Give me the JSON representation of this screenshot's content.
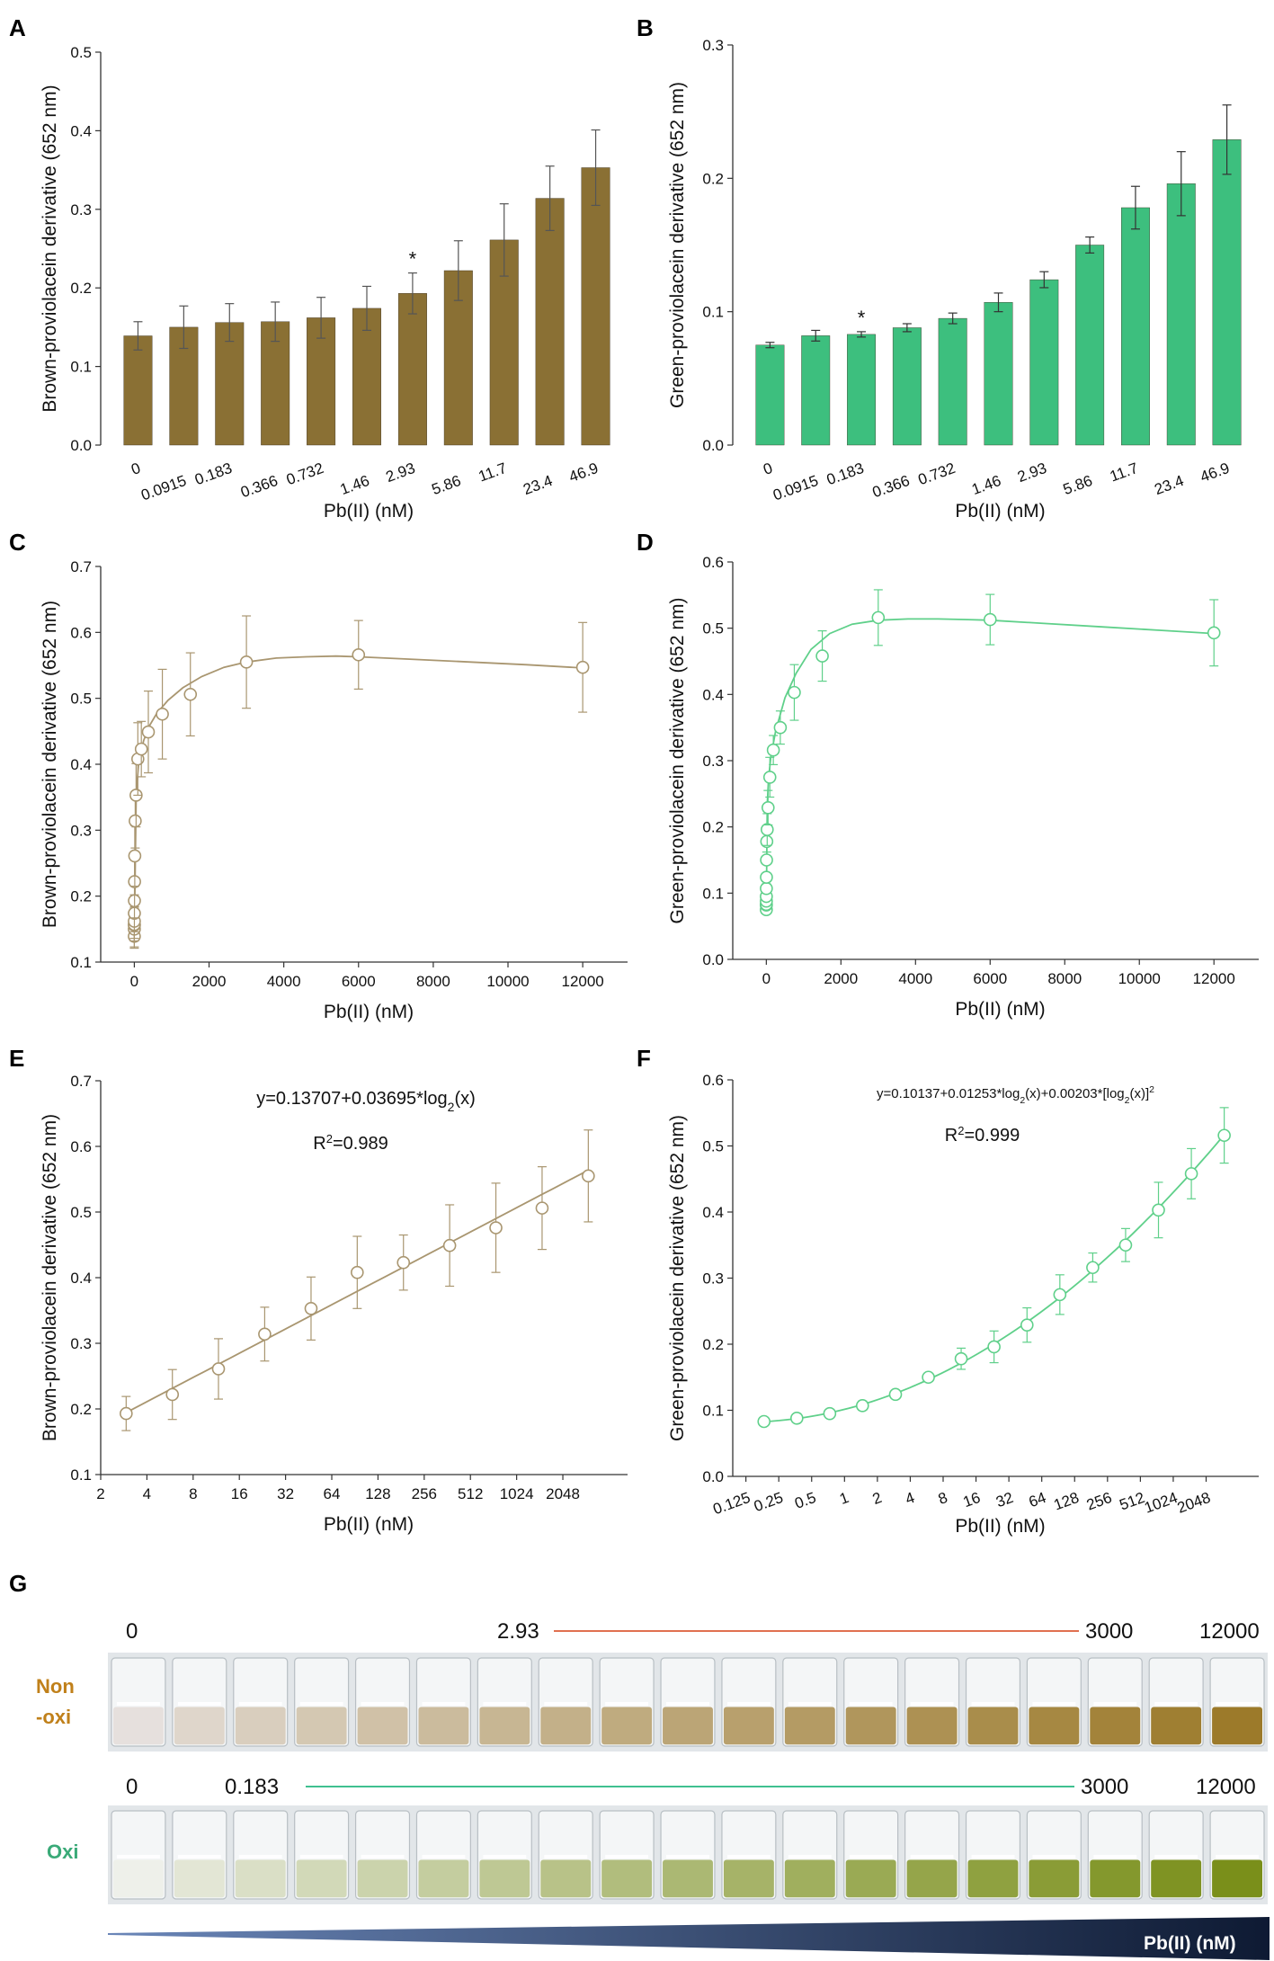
{
  "chart_data": [
    {
      "id": "A",
      "type": "bar",
      "panel_label": "A",
      "categories": [
        "0",
        "0.0915",
        "0.183",
        "0.366",
        "0.732",
        "1.46",
        "2.93",
        "5.86",
        "11.7",
        "23.4",
        "46.9"
      ],
      "values": [
        0.139,
        0.15,
        0.156,
        0.157,
        0.162,
        0.174,
        0.193,
        0.222,
        0.261,
        0.314,
        0.353
      ],
      "errors": [
        0.018,
        0.027,
        0.024,
        0.025,
        0.026,
        0.028,
        0.026,
        0.038,
        0.046,
        0.041,
        0.048
      ],
      "significance_index": 6,
      "significance_mark": "*",
      "xlabel": "Pb(II) (nM)",
      "ylabel": "Brown-proviolacein derivative (652 nm)",
      "ylim": [
        0,
        0.5
      ],
      "yticks": [
        "0.0",
        "0.1",
        "0.2",
        "0.3",
        "0.4",
        "0.5"
      ],
      "color": "#8a7034",
      "ylabel_color": "#8a7a56"
    },
    {
      "id": "B",
      "type": "bar",
      "panel_label": "B",
      "categories": [
        "0",
        "0.0915",
        "0.183",
        "0.366",
        "0.732",
        "1.46",
        "2.93",
        "5.86",
        "11.7",
        "23.4",
        "46.9"
      ],
      "values": [
        0.075,
        0.082,
        0.083,
        0.088,
        0.095,
        0.107,
        0.124,
        0.15,
        0.178,
        0.196,
        0.229
      ],
      "errors": [
        0.002,
        0.004,
        0.002,
        0.003,
        0.004,
        0.007,
        0.006,
        0.006,
        0.016,
        0.024,
        0.026
      ],
      "significance_index": 2,
      "significance_mark": "*",
      "xlabel": "Pb(II) (nM)",
      "ylabel": "Green-proviolacein derivative (652 nm)",
      "ylim": [
        0,
        0.3
      ],
      "yticks": [
        "0.0",
        "0.1",
        "0.2",
        "0.3"
      ],
      "color": "#3dbf7e",
      "ylabel_color": "#1a9a2e"
    },
    {
      "id": "C",
      "type": "scatter",
      "panel_label": "C",
      "x": [
        0,
        0.0915,
        0.183,
        0.366,
        0.732,
        1.46,
        2.93,
        5.86,
        11.7,
        23.4,
        46.9,
        93.75,
        187.5,
        375,
        750,
        1500,
        3000,
        6000,
        12000
      ],
      "y": [
        0.139,
        0.15,
        0.156,
        0.157,
        0.162,
        0.174,
        0.193,
        0.222,
        0.261,
        0.314,
        0.353,
        0.408,
        0.423,
        0.449,
        0.476,
        0.506,
        0.555,
        0.566,
        0.547
      ],
      "errors": [
        0.018,
        0.027,
        0.024,
        0.025,
        0.026,
        0.028,
        0.026,
        0.038,
        0.046,
        0.041,
        0.048,
        0.055,
        0.042,
        0.062,
        0.068,
        0.063,
        0.07,
        0.052,
        0.068
      ],
      "curve_x": [
        0,
        50,
        120,
        250,
        400,
        600,
        900,
        1300,
        1800,
        2400,
        3000,
        3800,
        4600,
        5400,
        6000,
        7500,
        9000,
        10500,
        12000
      ],
      "curve_y": [
        0.139,
        0.355,
        0.405,
        0.436,
        0.458,
        0.477,
        0.497,
        0.516,
        0.533,
        0.547,
        0.555,
        0.561,
        0.563,
        0.564,
        0.563,
        0.559,
        0.555,
        0.551,
        0.546
      ],
      "xlabel": "Pb(II) (nM)",
      "ylabel": "Brown-proviolacein derivative (652 nm)",
      "xlim": [
        -900,
        13200
      ],
      "ylim": [
        0.1,
        0.7
      ],
      "xticks": [
        "0",
        "2000",
        "4000",
        "6000",
        "8000",
        "10000",
        "12000"
      ],
      "yticks": [
        "0.1",
        "0.2",
        "0.3",
        "0.4",
        "0.5",
        "0.6",
        "0.7"
      ],
      "color": "#a99670",
      "ylabel_color": "#8a7a56"
    },
    {
      "id": "D",
      "type": "scatter",
      "panel_label": "D",
      "x": [
        0,
        0.0915,
        0.183,
        0.366,
        0.732,
        1.46,
        2.93,
        5.86,
        11.7,
        23.4,
        46.9,
        93.75,
        187.5,
        375,
        750,
        1500,
        3000,
        6000,
        12000
      ],
      "y": [
        0.075,
        0.082,
        0.083,
        0.088,
        0.095,
        0.107,
        0.124,
        0.15,
        0.178,
        0.196,
        0.229,
        0.275,
        0.316,
        0.35,
        0.403,
        0.458,
        0.516,
        0.513,
        0.493
      ],
      "errors": [
        0.002,
        0.004,
        0.002,
        0.003,
        0.004,
        0.007,
        0.006,
        0.006,
        0.016,
        0.024,
        0.026,
        0.03,
        0.022,
        0.025,
        0.042,
        0.038,
        0.042,
        0.038,
        0.05
      ],
      "curve_x": [
        0,
        25,
        60,
        120,
        250,
        500,
        800,
        1200,
        1700,
        2300,
        3000,
        3800,
        4600,
        5400,
        6000,
        7500,
        9000,
        10500,
        12000
      ],
      "curve_y": [
        0.075,
        0.235,
        0.272,
        0.305,
        0.345,
        0.395,
        0.432,
        0.468,
        0.492,
        0.506,
        0.512,
        0.514,
        0.514,
        0.513,
        0.512,
        0.507,
        0.502,
        0.497,
        0.492
      ],
      "xlabel": "Pb(II) (nM)",
      "ylabel": "Green-proviolacein derivative (652 nm)",
      "xlim": [
        -900,
        13200
      ],
      "ylim": [
        0.0,
        0.6
      ],
      "xticks": [
        "0",
        "2000",
        "4000",
        "6000",
        "8000",
        "10000",
        "12000"
      ],
      "yticks": [
        "0.0",
        "0.1",
        "0.2",
        "0.3",
        "0.4",
        "0.5",
        "0.6"
      ],
      "color": "#5fd08a",
      "ylabel_color": "#1a9a2e"
    },
    {
      "id": "E",
      "type": "scatter",
      "panel_label": "E",
      "xscale": "log2",
      "x": [
        2.93,
        5.86,
        11.7,
        23.4,
        46.9,
        93.75,
        187.5,
        375,
        750,
        1500,
        3000
      ],
      "y": [
        0.193,
        0.222,
        0.261,
        0.314,
        0.353,
        0.408,
        0.423,
        0.449,
        0.476,
        0.506,
        0.555
      ],
      "errors": [
        0.026,
        0.038,
        0.046,
        0.041,
        0.048,
        0.055,
        0.042,
        0.062,
        0.068,
        0.063,
        0.07
      ],
      "fit": {
        "a": 0.13707,
        "b": 0.03695
      },
      "equation": "y=0.13707+0.03695*log",
      "equation_sub": "2",
      "equation_tail": "(x)",
      "r2_prefix": "R",
      "r2_sup": "2",
      "r2_value": "=0.989",
      "xlabel": "Pb(II) (nM)",
      "ylabel": "Brown-proviolacein derivative (652 nm)",
      "xlim_log2": [
        1,
        12.4
      ],
      "ylim": [
        0.1,
        0.7
      ],
      "xticks": [
        "2",
        "4",
        "8",
        "16",
        "32",
        "64",
        "128",
        "256",
        "512",
        "1024",
        "2048"
      ],
      "yticks": [
        "0.1",
        "0.2",
        "0.3",
        "0.4",
        "0.5",
        "0.6",
        "0.7"
      ],
      "color": "#a99670",
      "ylabel_color": "#8a7a56"
    },
    {
      "id": "F",
      "type": "scatter",
      "panel_label": "F",
      "xscale": "log2",
      "x": [
        0.183,
        0.366,
        0.732,
        1.46,
        2.93,
        5.86,
        11.7,
        23.4,
        46.9,
        93.75,
        187.5,
        375,
        750,
        1500,
        3000
      ],
      "y": [
        0.083,
        0.088,
        0.095,
        0.107,
        0.124,
        0.15,
        0.178,
        0.196,
        0.229,
        0.275,
        0.316,
        0.35,
        0.403,
        0.458,
        0.516
      ],
      "errors": [
        0.002,
        0.003,
        0.004,
        0.007,
        0.006,
        0.006,
        0.016,
        0.024,
        0.026,
        0.03,
        0.022,
        0.025,
        0.042,
        0.038,
        0.042
      ],
      "fit": {
        "a": 0.10137,
        "b": 0.01253,
        "c": 0.00203
      },
      "equation": "y=0.10137+0.01253*log",
      "equation_sub": "2",
      "equation_mid": "(x)+0.00203*[log",
      "equation_sub2": "2",
      "equation_tail": "(x)]",
      "equation_sup": "2",
      "r2_prefix": "R",
      "r2_sup": "2",
      "r2_value": "=0.999",
      "xlabel": "Pb(II) (nM)",
      "ylabel": "Green-proviolacein derivative (652 nm)",
      "xlim_log2": [
        -3.4,
        12.6
      ],
      "ylim": [
        0.0,
        0.6
      ],
      "xticks": [
        "0.125",
        "0.25",
        "0.5",
        "1",
        "2",
        "4",
        "8",
        "16",
        "32",
        "64",
        "128",
        "256",
        "512",
        "1024",
        "2048"
      ],
      "yticks": [
        "0.0",
        "0.1",
        "0.2",
        "0.3",
        "0.4",
        "0.5",
        "0.6"
      ],
      "color": "#5fd08a",
      "ylabel_color": "#1a9a2e"
    }
  ],
  "panel_g": {
    "panel_label": "G",
    "nonoxi": {
      "label_line1": "Non",
      "label_line2": "-oxi",
      "label_color": "#c0801a",
      "start": "0",
      "threshold": "2.93",
      "saturation": "3000",
      "end": "12000",
      "threshold_color": "#c0801a",
      "line_color": "#e07050",
      "vial_count": 19
    },
    "oxi": {
      "label": "Oxi",
      "label_color": "#3aaa78",
      "start": "0",
      "threshold": "0.183",
      "saturation": "3000",
      "end": "12000",
      "threshold_color": "#3aaa78",
      "line_color": "#40c090",
      "vial_count": 19
    },
    "gradient_label": "Pb(II) (nM)"
  }
}
